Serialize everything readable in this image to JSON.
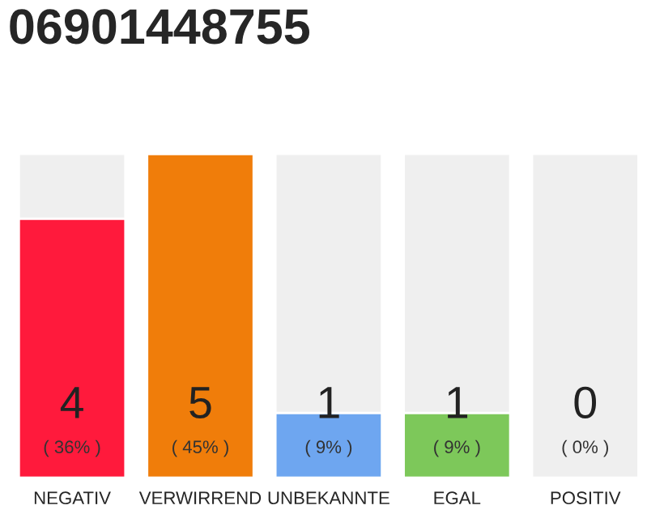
{
  "chart_data": {
    "type": "bar",
    "title": "06901448755",
    "stacked": true,
    "ylim": [
      0,
      5
    ],
    "tick_labels": "x",
    "categories": [
      "NEGATIV",
      "VERWIRREND",
      "UNBEKANNTE",
      "EGAL",
      "POSITIV"
    ],
    "series": [
      {
        "colors": [
          "#ff1a3c",
          "#f07d0a",
          "#6ea6f0",
          "#7dc85a",
          "#efefef"
        ],
        "values": [
          4,
          5,
          1,
          1,
          0
        ],
        "value_labels": [
          "4\n( 36% )",
          "5\n( 45% )",
          "1\n( 9% )",
          "1\n( 9% )",
          "0\n( 0% )"
        ]
      },
      {
        "color": "#efefef",
        "values": [
          1,
          0,
          4,
          4,
          5
        ]
      }
    ],
    "legend": false
  }
}
